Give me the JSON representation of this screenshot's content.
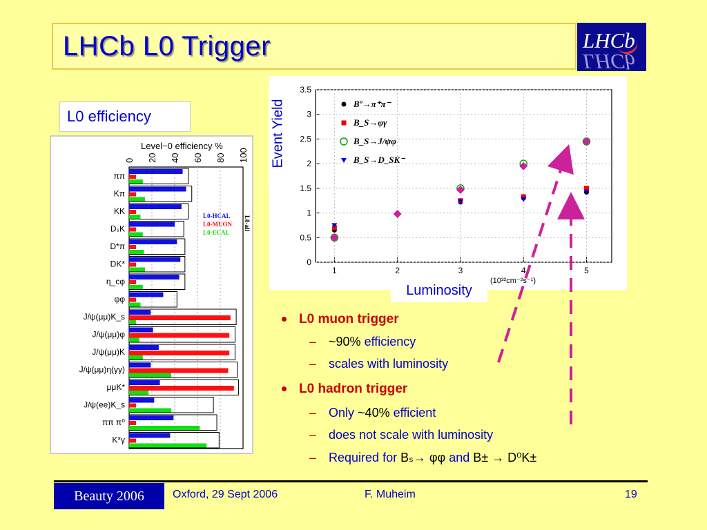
{
  "title": "LHCb L0 Trigger",
  "logo_text": "LHCb",
  "efficiency_label": "L0 efficiency",
  "histogram": {
    "title": "Level−0 efficiency %",
    "axis_ticks": [
      "0",
      "20",
      "40",
      "60",
      "80",
      "100"
    ],
    "legend": [
      "L0-HCAL",
      "L0-MUON",
      "L0-ECAL"
    ],
    "legend_side": "L0-all",
    "colors": {
      "hcal": "#1010e0",
      "muon": "#ff1010",
      "ecal": "#10e010"
    },
    "channels": [
      {
        "label": "ππ",
        "all": 52,
        "hcal": 47,
        "muon": 0,
        "ecal": 12
      },
      {
        "label": "Kπ",
        "all": 55,
        "hcal": 50,
        "muon": 0,
        "ecal": 14
      },
      {
        "label": "KK",
        "all": 52,
        "hcal": 46,
        "muon": 0,
        "ecal": 10
      },
      {
        "label": "DₛK",
        "all": 48,
        "hcal": 40,
        "muon": 0,
        "ecal": 12
      },
      {
        "label": "D*π",
        "all": 49,
        "hcal": 42,
        "muon": 0,
        "ecal": 13
      },
      {
        "label": "DK*",
        "all": 49,
        "hcal": 45,
        "muon": 0,
        "ecal": 14
      },
      {
        "label": "η_cφ",
        "all": 49,
        "hcal": 44,
        "muon": 0,
        "ecal": 12
      },
      {
        "label": "φφ",
        "all": 42,
        "hcal": 30,
        "muon": 0,
        "ecal": 10
      },
      {
        "label": "J/ψ(μμ)K_s",
        "all": 94,
        "hcal": 19,
        "muon": 89,
        "ecal": 6
      },
      {
        "label": "J/ψ(μμ)φ",
        "all": 93,
        "hcal": 21,
        "muon": 88,
        "ecal": 9
      },
      {
        "label": "J/ψ(μμ)K",
        "all": 93,
        "hcal": 26,
        "muon": 88,
        "ecal": 12
      },
      {
        "label": "J/ψ(μμ)η(γγ)",
        "all": 95,
        "hcal": 19,
        "muon": 87,
        "ecal": 37
      },
      {
        "label": "μμK*",
        "all": 96,
        "hcal": 27,
        "muon": 92,
        "ecal": 17
      },
      {
        "label": "J/ψ(ee)K_s",
        "all": 74,
        "hcal": 22,
        "muon": 0,
        "ecal": 37
      },
      {
        "label": "ππ π⁰",
        "all": 77,
        "hcal": 39,
        "muon": 0,
        "ecal": 62
      },
      {
        "label": "K*γ",
        "all": 79,
        "hcal": 36,
        "muon": 0,
        "ecal": 68
      }
    ]
  },
  "chart_data": {
    "type": "scatter",
    "title": "",
    "xlabel": "Luminosity",
    "xunit": "(10³²cm⁻²s⁻¹)",
    "ylabel": "Event Yield",
    "xlim": [
      0.7,
      5.4
    ],
    "ylim": [
      0,
      3.5
    ],
    "xticks": [
      1,
      2,
      3,
      4,
      5
    ],
    "yticks": [
      0,
      0.5,
      1,
      1.5,
      2,
      2.5,
      3,
      3.5
    ],
    "series": [
      {
        "name": "Bº→π⁺π⁻",
        "color": "#000000",
        "marker": "circle",
        "x": [
          1,
          3,
          4,
          5
        ],
        "y": [
          0.65,
          1.22,
          1.3,
          1.42
        ]
      },
      {
        "name": "B_S→φγ",
        "color": "#ee0000",
        "marker": "square",
        "x": [
          1,
          3,
          4,
          5
        ],
        "y": [
          0.7,
          1.25,
          1.33,
          1.5
        ]
      },
      {
        "name": "B_S→J/ψφ",
        "color": "#00aa00",
        "marker": "circle-open",
        "x": [
          1,
          3,
          4,
          5
        ],
        "y": [
          0.5,
          1.5,
          2.0,
          2.45
        ]
      },
      {
        "name": "B_S→D_SK⁻",
        "color": "#0000dd",
        "marker": "triangle",
        "x": [
          1,
          3,
          4,
          5
        ],
        "y": [
          0.75,
          1.23,
          1.28,
          1.43
        ]
      },
      {
        "name": "",
        "color": "#cc2299",
        "marker": "diamond",
        "x": [
          1,
          2,
          3,
          4,
          5
        ],
        "y": [
          0.5,
          0.98,
          1.47,
          1.95,
          2.45
        ]
      }
    ]
  },
  "yield_label": "Event Yield",
  "lumi_label": "Luminosity",
  "bullets": {
    "muon": {
      "title": "L0 muon trigger",
      "a_pre": "~90%",
      "a_post": "efficiency",
      "b": "scales with luminosity"
    },
    "hadron": {
      "title": "L0 hadron trigger",
      "a_pre": "Only",
      "a_mid": "~40%",
      "a_post": "efficient",
      "b": "does not scale with luminosity",
      "c_pre": "Required for",
      "c_phys1": "Bₛ→ φφ",
      "c_and": "and",
      "c_phys2": "B± → D⁰K±"
    },
    "dash": "–"
  },
  "footer": {
    "conference": "Beauty 2006",
    "place": "Oxford, 29 Sept 2006",
    "author": "F. Muheim",
    "page": "19"
  },
  "arrow_color": "#cc2299"
}
